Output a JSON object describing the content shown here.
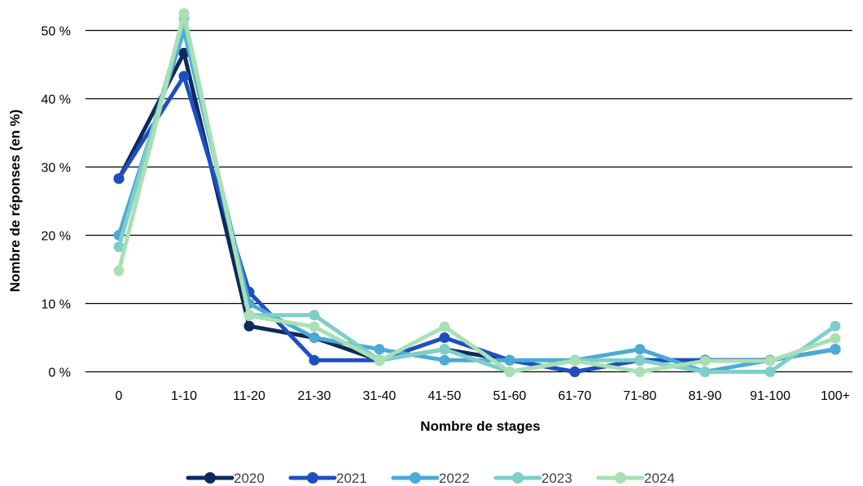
{
  "chart_data": {
    "type": "line",
    "title": "",
    "xlabel": "Nombre de stages",
    "ylabel": "Nombre de réponses (en %)",
    "ylim": [
      0,
      50
    ],
    "yticks": [
      0,
      10,
      20,
      30,
      40,
      50
    ],
    "ytick_labels": [
      "0 %",
      "10 %",
      "20 %",
      "30 %",
      "40 %",
      "50 %"
    ],
    "grid": "horizontal",
    "legend_position": "bottom",
    "categories": [
      "0",
      "1-10",
      "11-20",
      "21-30",
      "31-40",
      "41-50",
      "51-60",
      "61-70",
      "71-80",
      "81-90",
      "91-100",
      "100+"
    ],
    "series": [
      {
        "name": "2020",
        "color": "#0d2a5c",
        "values": [
          28.3,
          46.7,
          6.7,
          5.0,
          1.7,
          3.3,
          1.7,
          0.0,
          1.7,
          1.7,
          1.7,
          3.3
        ]
      },
      {
        "name": "2021",
        "color": "#1f4fbf",
        "values": [
          28.3,
          43.3,
          11.7,
          1.7,
          1.7,
          5.0,
          1.7,
          0.0,
          1.7,
          1.7,
          1.7,
          3.3
        ]
      },
      {
        "name": "2022",
        "color": "#4aabd6",
        "values": [
          20.0,
          50.0,
          10.0,
          5.0,
          3.3,
          1.7,
          1.7,
          1.7,
          3.3,
          0.0,
          1.7,
          3.3
        ]
      },
      {
        "name": "2023",
        "color": "#7ecfc9",
        "values": [
          18.3,
          51.7,
          8.3,
          8.3,
          1.7,
          3.3,
          0.0,
          1.7,
          1.7,
          0.0,
          0.0,
          6.7
        ]
      },
      {
        "name": "2024",
        "color": "#a8e0b4",
        "values": [
          14.8,
          52.5,
          8.2,
          6.6,
          1.6,
          6.6,
          0.0,
          1.6,
          0.0,
          1.6,
          1.6,
          4.9
        ]
      }
    ]
  }
}
